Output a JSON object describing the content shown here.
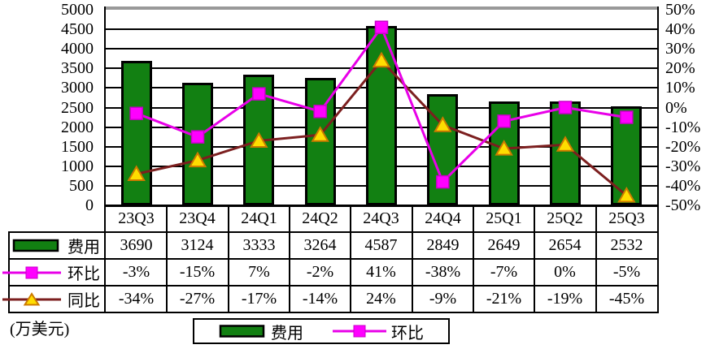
{
  "chart_data": {
    "type": "bar+line combo with data table",
    "categories": [
      "23Q3",
      "23Q4",
      "24Q1",
      "24Q2",
      "24Q3",
      "24Q4",
      "25Q1",
      "25Q2",
      "25Q3"
    ],
    "series": [
      {
        "name": "费用",
        "type": "bar",
        "axis": "left",
        "color": "#128012",
        "values": [
          3690,
          3124,
          3333,
          3264,
          4587,
          2849,
          2649,
          2654,
          2532
        ],
        "values_display": [
          "3690",
          "3124",
          "3333",
          "3264",
          "4587",
          "2849",
          "2649",
          "2654",
          "2532"
        ]
      },
      {
        "name": "环比",
        "type": "line",
        "axis": "right",
        "color": "#E800E8",
        "marker": "square",
        "marker_fill": "#FF00FF",
        "marker_stroke": "#C800C8",
        "values": [
          -3,
          -15,
          7,
          -2,
          41,
          -38,
          -7,
          0,
          -5
        ],
        "values_display": [
          "-3%",
          "-15%",
          "7%",
          "-2%",
          "41%",
          "-38%",
          "-7%",
          "0%",
          "-5%"
        ]
      },
      {
        "name": "同比",
        "type": "line",
        "axis": "right",
        "color": "#7C1F1F",
        "marker": "triangle",
        "marker_fill": "#FFDD00",
        "marker_stroke": "#CC7A00",
        "values": [
          -34,
          -27,
          -17,
          -14,
          24,
          -9,
          -21,
          -19,
          -45
        ],
        "values_display": [
          "-34%",
          "-27%",
          "-17%",
          "-14%",
          "24%",
          "-9%",
          "-21%",
          "-19%",
          "-45%"
        ]
      }
    ],
    "left_axis": {
      "min": 0,
      "max": 5000,
      "step": 500,
      "ticks": [
        "5000",
        "4500",
        "4000",
        "3500",
        "3000",
        "2500",
        "2000",
        "1500",
        "1000",
        "500",
        "0"
      ]
    },
    "right_axis": {
      "min": -50,
      "max": 50,
      "step": 10,
      "ticks": [
        "50%",
        "40%",
        "30%",
        "20%",
        "10%",
        "0%",
        "-10%",
        "-20%",
        "-30%",
        "-40%",
        "-50%"
      ]
    },
    "grid": true,
    "legend_position": "bottom",
    "legend": [
      "费用",
      "环比"
    ],
    "unit_label": "(万美元)"
  }
}
